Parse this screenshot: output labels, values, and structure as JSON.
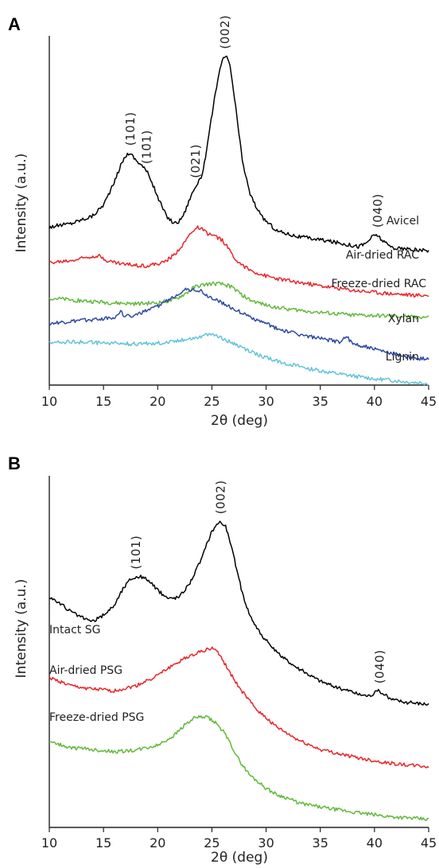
{
  "chart_data": [
    {
      "panel": "A",
      "type": "line",
      "xlabel": "2θ (deg)",
      "ylabel": "Intensity (a.u.)",
      "xlim": [
        10,
        45
      ],
      "xticks": [
        10,
        15,
        20,
        25,
        30,
        35,
        40,
        45
      ],
      "y_scale": "arbitrary (stacked offsets)",
      "grid": false,
      "peak_labels": [
        {
          "text": "(101)",
          "x": 17.5
        },
        {
          "text": "(10̄1)",
          "x": 19.0
        },
        {
          "text": "(021)",
          "x": 23.5
        },
        {
          "text": "(002)",
          "x": 26.2
        },
        {
          "text": "(040)",
          "x": 40.3
        }
      ],
      "series": [
        {
          "name": "Avicel",
          "color": "#000000",
          "x": [
            10,
            12,
            14,
            15,
            16,
            16.5,
            17,
            17.4,
            18,
            18.6,
            19.2,
            20,
            20.8,
            21.5,
            22,
            22.5,
            23,
            23.5,
            24,
            24.5,
            25,
            25.5,
            26,
            26.3,
            26.7,
            27.2,
            27.8,
            28.5,
            29.5,
            31,
            33,
            35,
            37,
            38.5,
            39.2,
            39.7,
            40.2,
            40.6,
            41.2,
            41.8,
            43,
            45
          ],
          "y": [
            2.1,
            2.15,
            2.25,
            2.4,
            2.7,
            2.9,
            3.05,
            3.1,
            3.0,
            2.92,
            2.8,
            2.5,
            2.25,
            2.15,
            2.18,
            2.3,
            2.5,
            2.65,
            2.75,
            3.1,
            3.6,
            4.05,
            4.35,
            4.4,
            4.25,
            3.7,
            3.0,
            2.55,
            2.25,
            2.05,
            1.97,
            1.93,
            1.88,
            1.84,
            1.88,
            1.96,
            2.0,
            1.94,
            1.86,
            1.82,
            1.8,
            1.78
          ]
        },
        {
          "name": "Air-dried RAC",
          "color": "#e8262b",
          "x": [
            10,
            12,
            13.5,
            14.5,
            15.5,
            17,
            19,
            20.5,
            21.5,
            22.5,
            23.2,
            23.8,
            24.5,
            25.2,
            26,
            26.8,
            27.5,
            28.5,
            30,
            32,
            35,
            38,
            41,
            43,
            45
          ],
          "y": [
            1.62,
            1.65,
            1.7,
            1.72,
            1.64,
            1.6,
            1.58,
            1.62,
            1.72,
            1.9,
            2.05,
            2.1,
            2.02,
            1.98,
            1.92,
            1.75,
            1.62,
            1.52,
            1.44,
            1.38,
            1.31,
            1.25,
            1.21,
            1.19,
            1.18
          ]
        },
        {
          "name": "Freeze-dried RAC",
          "color": "#62b83c",
          "x": [
            10,
            12,
            14,
            16,
            18,
            20,
            21.5,
            22.5,
            23.5,
            24.5,
            25.3,
            26,
            26.8,
            27.5,
            28.5,
            30,
            32,
            34,
            36,
            38,
            40,
            42,
            45
          ],
          "y": [
            1.15,
            1.12,
            1.1,
            1.08,
            1.07,
            1.08,
            1.12,
            1.2,
            1.3,
            1.33,
            1.34,
            1.33,
            1.3,
            1.22,
            1.12,
            1.05,
            1.0,
            0.97,
            0.94,
            0.92,
            0.91,
            0.9,
            0.89
          ]
        },
        {
          "name": "Xylan",
          "color": "#2f4aa0",
          "x": [
            10,
            12,
            14,
            15.5,
            16.3,
            16.6,
            16.9,
            18,
            19.5,
            21,
            22,
            22.6,
            23.4,
            24,
            24.5,
            25.5,
            27,
            29,
            31,
            33,
            35,
            36.8,
            37.4,
            37.9,
            39,
            41,
            43,
            45
          ],
          "y": [
            0.8,
            0.83,
            0.86,
            0.88,
            0.9,
            1.0,
            0.9,
            0.92,
            1.0,
            1.12,
            1.22,
            1.26,
            1.26,
            1.24,
            1.18,
            1.12,
            1.0,
            0.86,
            0.74,
            0.66,
            0.6,
            0.56,
            0.64,
            0.54,
            0.5,
            0.42,
            0.36,
            0.32
          ]
        },
        {
          "name": "Lignin",
          "color": "#63c3da",
          "x": [
            10,
            12,
            14,
            16,
            18,
            20,
            22,
            23.5,
            24.5,
            25.1,
            26,
            27.5,
            29,
            31,
            33,
            35,
            37,
            39,
            41,
            43,
            45
          ],
          "y": [
            0.55,
            0.56,
            0.55,
            0.54,
            0.53,
            0.54,
            0.58,
            0.62,
            0.65,
            0.67,
            0.6,
            0.5,
            0.4,
            0.3,
            0.23,
            0.17,
            0.12,
            0.08,
            0.05,
            0.02,
            0.0
          ]
        }
      ]
    },
    {
      "panel": "B",
      "type": "line",
      "xlabel": "2θ (deg)",
      "ylabel": "Intensity (a.u.)",
      "xlim": [
        10,
        45
      ],
      "xticks": [
        10,
        15,
        20,
        25,
        30,
        35,
        40,
        45
      ],
      "y_scale": "arbitrary (stacked offsets)",
      "grid": false,
      "peak_labels": [
        {
          "text": "(101)",
          "x": 18.0
        },
        {
          "text": "(002)",
          "x": 25.8
        },
        {
          "text": "(040)",
          "x": 40.5
        }
      ],
      "series": [
        {
          "name": "Intact SG",
          "color": "#000000",
          "x": [
            10,
            11,
            12,
            13,
            14,
            15,
            16,
            16.8,
            17.5,
            18.3,
            19,
            20,
            21,
            22,
            23,
            24,
            25,
            25.7,
            26.3,
            27,
            27.8,
            28.5,
            29.5,
            31,
            33,
            35,
            37,
            37.8,
            38.5,
            39.5,
            40.4,
            41.5,
            43,
            45
          ],
          "y": [
            2.8,
            2.72,
            2.62,
            2.55,
            2.5,
            2.58,
            2.7,
            2.9,
            3.02,
            3.05,
            3.02,
            2.88,
            2.78,
            2.8,
            2.98,
            3.25,
            3.6,
            3.72,
            3.65,
            3.3,
            2.85,
            2.58,
            2.35,
            2.12,
            1.93,
            1.78,
            1.68,
            1.66,
            1.62,
            1.6,
            1.66,
            1.56,
            1.52,
            1.5
          ]
        },
        {
          "name": "Air-dried PSG",
          "color": "#e8262b",
          "x": [
            10,
            12,
            14,
            16,
            18,
            20,
            22,
            23.5,
            24.5,
            25.2,
            25.8,
            26.5,
            27.5,
            29,
            31,
            33,
            35,
            38,
            41,
            43,
            45
          ],
          "y": [
            1.82,
            1.72,
            1.68,
            1.66,
            1.72,
            1.85,
            2.02,
            2.12,
            2.16,
            2.18,
            2.08,
            1.92,
            1.7,
            1.45,
            1.22,
            1.06,
            0.95,
            0.86,
            0.79,
            0.76,
            0.74
          ]
        },
        {
          "name": "Freeze-dried PSG",
          "color": "#62b83c",
          "x": [
            10,
            12,
            14,
            16,
            18,
            20,
            21.5,
            22.5,
            23.5,
            24.5,
            25.3,
            26,
            26.8,
            27.5,
            28.5,
            30,
            31,
            32,
            33,
            35,
            38,
            41,
            43,
            45
          ],
          "y": [
            1.04,
            0.97,
            0.95,
            0.92,
            0.94,
            1.0,
            1.12,
            1.25,
            1.34,
            1.34,
            1.28,
            1.18,
            1.0,
            0.82,
            0.64,
            0.48,
            0.4,
            0.36,
            0.3,
            0.25,
            0.19,
            0.14,
            0.12,
            0.1
          ]
        }
      ]
    }
  ]
}
